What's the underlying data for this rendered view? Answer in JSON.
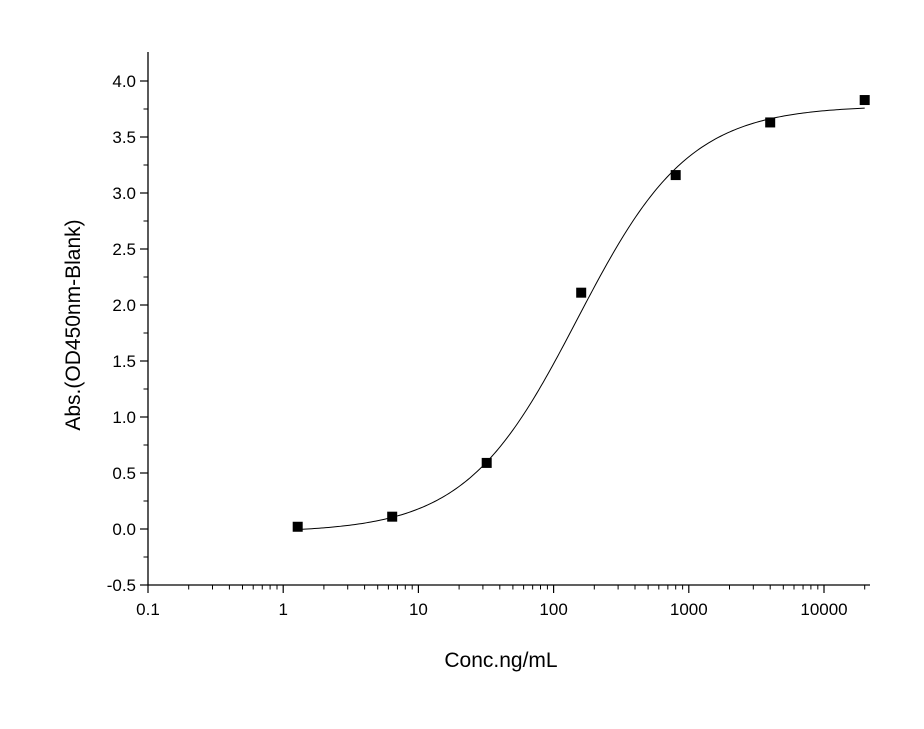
{
  "chart_data": {
    "type": "scatter",
    "title": "",
    "xlabel": "Conc.ng/mL",
    "ylabel": "Abs.(OD450nm-Blank)",
    "x_scale": "log",
    "xlim": [
      0.1,
      20000
    ],
    "ylim": [
      -0.5,
      4.2
    ],
    "x_ticks": [
      0.1,
      1,
      10,
      100,
      1000,
      10000
    ],
    "x_tick_labels": [
      "0.1",
      "1",
      "10",
      "100",
      "1000",
      "10000"
    ],
    "y_ticks": [
      -0.5,
      0.0,
      0.5,
      1.0,
      1.5,
      2.0,
      2.5,
      3.0,
      3.5,
      4.0
    ],
    "y_tick_labels": [
      "-0.5",
      "0.0",
      "0.5",
      "1.0",
      "1.5",
      "2.0",
      "2.5",
      "3.0",
      "3.5",
      "4.0"
    ],
    "grid": false,
    "legend": "none",
    "series": [
      {
        "kind": "points",
        "marker": "square",
        "color": "#000000",
        "x": [
          1.28,
          6.4,
          32,
          160,
          800,
          4000,
          20000
        ],
        "y": [
          0.02,
          0.11,
          0.59,
          2.11,
          3.16,
          3.63,
          3.83
        ]
      }
    ],
    "fit_curve": {
      "kind": "line",
      "color": "#000000",
      "model": "4PL",
      "bottom": -0.03,
      "top": 3.78,
      "ec50": 150,
      "hill": 1.05,
      "x_range": [
        1.28,
        20000
      ]
    }
  }
}
